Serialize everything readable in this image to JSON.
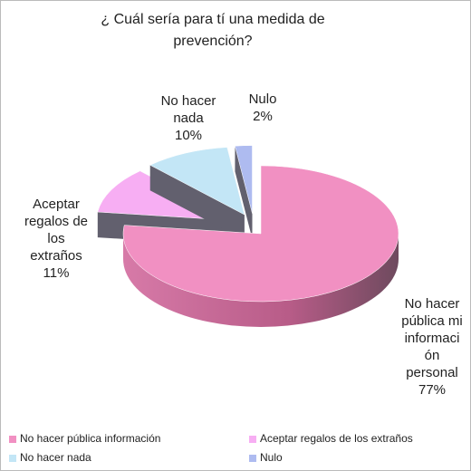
{
  "chart_data": {
    "type": "pie",
    "title": "¿ Cuál sería para tí una medida de prevención?",
    "categories": [
      "No hacer pública información",
      "Aceptar regalos de los extraños",
      "No hacer nada",
      "Nulo"
    ],
    "data_labels": [
      [
        "No hacer",
        "pública mi",
        "informaci",
        "ón",
        "personal"
      ],
      [
        "Aceptar",
        "regalos de",
        "los",
        "extraños"
      ],
      [
        "No hacer",
        "nada"
      ],
      [
        "Nulo"
      ]
    ],
    "values": [
      77,
      11,
      10,
      2
    ],
    "value_labels": [
      "77%",
      "11%",
      "10%",
      "2%"
    ],
    "colors": [
      "#f190c2",
      "#f7aef3",
      "#c3e6f6",
      "#aebbf0"
    ],
    "legend": "bottom"
  }
}
